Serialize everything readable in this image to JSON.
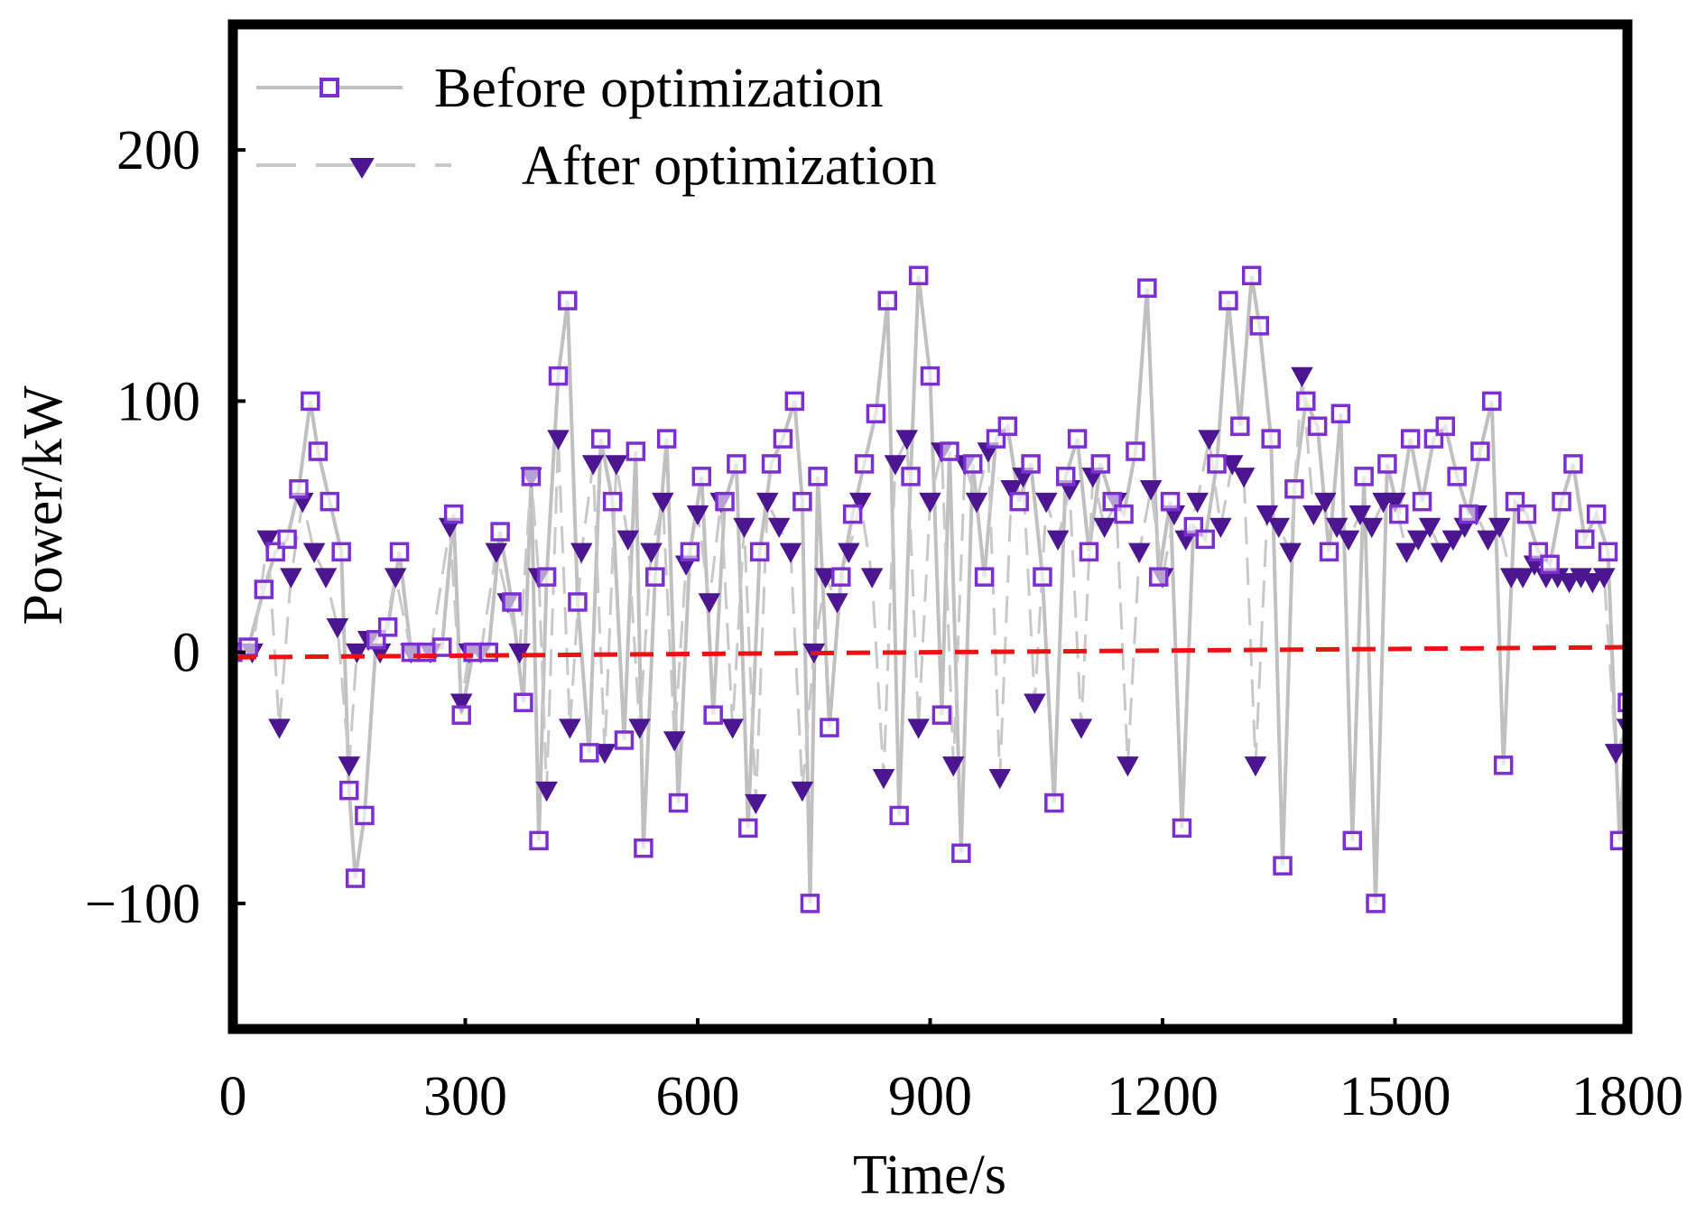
{
  "chart_data": {
    "type": "line",
    "title": "",
    "xlabel": "Time/s",
    "ylabel": "Power/kW",
    "xlim": [
      0,
      1800
    ],
    "ylim": [
      -150,
      250
    ],
    "xticks": [
      0,
      300,
      600,
      900,
      1200,
      1500,
      1800
    ],
    "yticks": [
      -100,
      0,
      100,
      200
    ],
    "xtick_labels": [
      "0",
      "300",
      "600",
      "900",
      "1200",
      "1500",
      "1800"
    ],
    "ytick_labels": [
      "−100",
      "0",
      "100",
      "200"
    ],
    "grid": false,
    "legend_position": "top-left",
    "colors": {
      "before_marker": "#7b2fd0",
      "before_line": "#c0c0c0",
      "after_marker": "#4b1690",
      "after_line": "#c8c8c8",
      "trend": "#ee1111"
    },
    "series": [
      {
        "name": "Before optimization",
        "style": "solid-line-open-square",
        "x": [
          0,
          20,
          40,
          55,
          70,
          85,
          100,
          110,
          125,
          140,
          150,
          158,
          170,
          185,
          200,
          215,
          230,
          250,
          270,
          285,
          295,
          310,
          330,
          345,
          360,
          375,
          385,
          395,
          405,
          420,
          432,
          445,
          460,
          475,
          490,
          505,
          520,
          530,
          545,
          560,
          575,
          590,
          605,
          620,
          635,
          650,
          665,
          680,
          695,
          710,
          725,
          735,
          745,
          755,
          770,
          785,
          800,
          815,
          830,
          845,
          860,
          875,
          885,
          900,
          915,
          925,
          940,
          955,
          970,
          985,
          1000,
          1015,
          1030,
          1045,
          1060,
          1075,
          1090,
          1105,
          1120,
          1135,
          1150,
          1165,
          1180,
          1195,
          1210,
          1225,
          1240,
          1255,
          1270,
          1285,
          1300,
          1315,
          1325,
          1340,
          1355,
          1370,
          1385,
          1400,
          1415,
          1430,
          1445,
          1460,
          1475,
          1490,
          1505,
          1520,
          1535,
          1550,
          1565,
          1580,
          1595,
          1610,
          1625,
          1640,
          1655,
          1670,
          1685,
          1700,
          1715,
          1730,
          1745,
          1760,
          1775,
          1790,
          1800
        ],
        "values": [
          0,
          2,
          25,
          40,
          45,
          65,
          100,
          80,
          60,
          40,
          -55,
          -90,
          -65,
          5,
          10,
          40,
          0,
          0,
          2,
          55,
          -25,
          0,
          0,
          48,
          20,
          -20,
          70,
          -75,
          30,
          110,
          140,
          20,
          -40,
          85,
          60,
          -35,
          80,
          -78,
          30,
          85,
          -60,
          40,
          70,
          -25,
          60,
          75,
          -70,
          40,
          75,
          85,
          100,
          60,
          -100,
          70,
          -30,
          30,
          55,
          75,
          95,
          140,
          -65,
          70,
          150,
          110,
          -25,
          80,
          -80,
          75,
          30,
          85,
          90,
          60,
          75,
          30,
          -60,
          70,
          85,
          40,
          75,
          60,
          55,
          80,
          145,
          30,
          60,
          -70,
          50,
          45,
          75,
          140,
          90,
          150,
          130,
          85,
          -85,
          65,
          100,
          90,
          40,
          95,
          -75,
          70,
          -100,
          75,
          55,
          85,
          60,
          85,
          90,
          70,
          55,
          80,
          100,
          -45,
          60,
          55,
          40,
          35,
          60,
          75,
          45,
          55,
          40,
          -75,
          -20
        ]
      },
      {
        "name": "After optimization",
        "style": "dashed-line-filled-down-triangle",
        "x": [
          0,
          25,
          45,
          60,
          75,
          90,
          105,
          120,
          135,
          150,
          160,
          175,
          190,
          210,
          230,
          255,
          280,
          295,
          305,
          320,
          340,
          355,
          370,
          385,
          395,
          405,
          420,
          435,
          450,
          465,
          480,
          495,
          510,
          525,
          540,
          555,
          570,
          585,
          600,
          615,
          630,
          645,
          660,
          675,
          690,
          705,
          720,
          735,
          750,
          765,
          780,
          795,
          810,
          825,
          840,
          855,
          870,
          885,
          900,
          915,
          930,
          945,
          960,
          975,
          990,
          1005,
          1020,
          1035,
          1050,
          1065,
          1080,
          1095,
          1110,
          1125,
          1140,
          1155,
          1170,
          1185,
          1200,
          1215,
          1230,
          1245,
          1260,
          1275,
          1290,
          1305,
          1320,
          1335,
          1350,
          1365,
          1380,
          1395,
          1410,
          1425,
          1440,
          1455,
          1470,
          1485,
          1500,
          1515,
          1530,
          1545,
          1560,
          1575,
          1590,
          1605,
          1620,
          1635,
          1650,
          1665,
          1680,
          1695,
          1710,
          1725,
          1740,
          1755,
          1770,
          1785,
          1800
        ],
        "values": [
          0,
          0,
          45,
          -30,
          30,
          60,
          40,
          30,
          10,
          -45,
          0,
          5,
          0,
          30,
          0,
          0,
          50,
          -20,
          0,
          0,
          40,
          20,
          0,
          70,
          30,
          -55,
          85,
          -30,
          40,
          75,
          -40,
          75,
          45,
          -30,
          40,
          60,
          -35,
          35,
          55,
          20,
          60,
          -30,
          50,
          -60,
          60,
          50,
          40,
          -55,
          0,
          30,
          20,
          40,
          60,
          30,
          -50,
          75,
          85,
          -30,
          60,
          80,
          -45,
          75,
          60,
          80,
          -50,
          65,
          70,
          -20,
          60,
          45,
          65,
          -30,
          70,
          50,
          60,
          -45,
          40,
          65,
          30,
          55,
          45,
          60,
          85,
          50,
          75,
          70,
          -45,
          55,
          50,
          40,
          110,
          55,
          60,
          50,
          45,
          55,
          50,
          60,
          60,
          40,
          45,
          50,
          40,
          45,
          50,
          55,
          45,
          50,
          30,
          30,
          35,
          30,
          30,
          28,
          30,
          28,
          30,
          -40,
          -30
        ]
      }
    ],
    "trend_line": {
      "name": "",
      "style": "red-dashed",
      "x": [
        0,
        1800
      ],
      "values": [
        -2,
        2
      ]
    }
  }
}
